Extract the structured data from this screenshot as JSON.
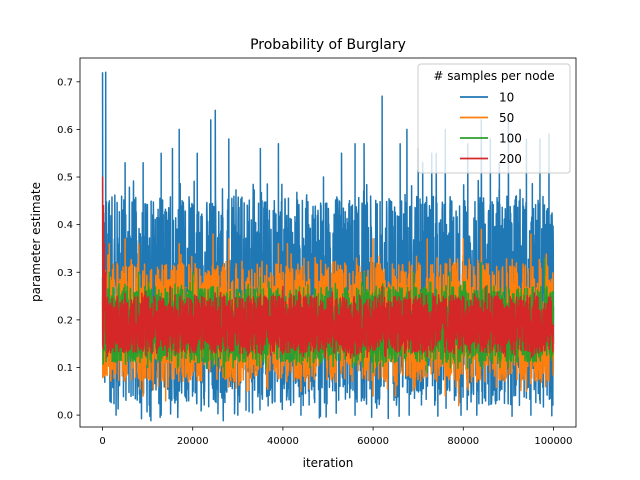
{
  "chart_data": {
    "type": "line",
    "title": "Probability of Burglary",
    "xlabel": "iteration",
    "ylabel": "parameter estimate",
    "xlim": [
      -5000,
      105000
    ],
    "ylim": [
      -0.025,
      0.75
    ],
    "xticks": [
      0,
      20000,
      40000,
      60000,
      80000,
      100000
    ],
    "xtick_labels": [
      "0",
      "20000",
      "40000",
      "60000",
      "80000",
      "100000"
    ],
    "yticks": [
      0.0,
      0.1,
      0.2,
      0.3,
      0.4,
      0.5,
      0.6,
      0.7
    ],
    "ytick_labels": [
      "0.0",
      "0.1",
      "0.2",
      "0.3",
      "0.4",
      "0.5",
      "0.6",
      "0.7"
    ],
    "x_range": [
      0,
      100000
    ],
    "legend": {
      "title": "# samples per node",
      "placement": "top-right"
    },
    "grid": false,
    "series": [
      {
        "name": "10",
        "color": "#1f77b4",
        "initial_value": 0.72,
        "typical_range": [
          0.02,
          0.46
        ],
        "spikes": [
          [
            700,
            0.72
          ],
          [
            1500,
            0.45
          ],
          [
            5000,
            0.53
          ],
          [
            9000,
            0.53
          ],
          [
            13000,
            0.55
          ],
          [
            15500,
            0.56
          ],
          [
            17000,
            0.6
          ],
          [
            21000,
            0.55
          ],
          [
            24000,
            0.62
          ],
          [
            25000,
            0.64
          ],
          [
            28000,
            0.58
          ],
          [
            35000,
            0.56
          ],
          [
            39000,
            0.57
          ],
          [
            49000,
            0.5
          ],
          [
            53000,
            0.55
          ],
          [
            56000,
            0.57
          ],
          [
            58000,
            0.57
          ],
          [
            62000,
            0.67
          ],
          [
            66000,
            0.57
          ],
          [
            67500,
            0.6
          ],
          [
            70000,
            0.56
          ],
          [
            71000,
            0.53
          ],
          [
            73000,
            0.55
          ],
          [
            74000,
            0.55
          ],
          [
            76000,
            0.6
          ],
          [
            81000,
            0.57
          ],
          [
            84000,
            0.62
          ],
          [
            86000,
            0.58
          ],
          [
            88000,
            0.53
          ],
          [
            90000,
            0.62
          ],
          [
            94000,
            0.58
          ],
          [
            97000,
            0.58
          ],
          [
            99000,
            0.59
          ]
        ],
        "low_spikes": [
          [
            3000,
            0.0
          ],
          [
            13000,
            0.0
          ],
          [
            30000,
            0.0
          ],
          [
            44000,
            0.0
          ],
          [
            56000,
            0.0
          ],
          [
            68000,
            0.0
          ],
          [
            83000,
            0.0
          ],
          [
            95000,
            0.0
          ]
        ]
      },
      {
        "name": "50",
        "color": "#ff7f0e",
        "initial_value": 0.25,
        "typical_range": [
          0.07,
          0.32
        ],
        "spikes": [
          [
            1500,
            0.36
          ],
          [
            5000,
            0.37
          ],
          [
            8000,
            0.36
          ],
          [
            17000,
            0.36
          ],
          [
            24500,
            0.38
          ],
          [
            28000,
            0.37
          ],
          [
            39000,
            0.36
          ],
          [
            41000,
            0.36
          ],
          [
            60000,
            0.37
          ],
          [
            72000,
            0.37
          ],
          [
            80000,
            0.37
          ],
          [
            84000,
            0.39
          ],
          [
            95000,
            0.38
          ]
        ],
        "low_spikes": [
          [
            9000,
            0.04
          ],
          [
            14000,
            0.03
          ],
          [
            32000,
            0.05
          ],
          [
            44000,
            0.05
          ],
          [
            60000,
            0.04
          ],
          [
            65000,
            0.04
          ],
          [
            76000,
            0.04
          ],
          [
            79000,
            0.02
          ],
          [
            94000,
            0.05
          ]
        ]
      },
      {
        "name": "100",
        "color": "#2ca02c",
        "initial_value": 0.29,
        "typical_range": [
          0.11,
          0.27
        ],
        "spikes": [
          [
            1500,
            0.3
          ],
          [
            8000,
            0.3
          ],
          [
            20000,
            0.3
          ],
          [
            35000,
            0.29
          ],
          [
            58000,
            0.3
          ],
          [
            69000,
            0.3
          ],
          [
            77000,
            0.3
          ],
          [
            84000,
            0.32
          ],
          [
            98000,
            0.33
          ]
        ],
        "low_spikes": [
          [
            10000,
            0.1
          ],
          [
            27000,
            0.08
          ],
          [
            46000,
            0.1
          ],
          [
            60000,
            0.09
          ],
          [
            72000,
            0.09
          ],
          [
            90000,
            0.1
          ]
        ]
      },
      {
        "name": "200",
        "color": "#d62728",
        "initial_value": 0.5,
        "typical_range": [
          0.13,
          0.25
        ],
        "spikes": [
          [
            20,
            0.5
          ],
          [
            200,
            0.44
          ],
          [
            400,
            0.36
          ],
          [
            700,
            0.3
          ],
          [
            15000,
            0.27
          ],
          [
            40000,
            0.27
          ],
          [
            62000,
            0.27
          ],
          [
            85000,
            0.27
          ]
        ],
        "low_spikes": [
          [
            12000,
            0.13
          ],
          [
            31000,
            0.13
          ],
          [
            55000,
            0.12
          ],
          [
            78000,
            0.13
          ],
          [
            96000,
            0.13
          ]
        ]
      }
    ]
  }
}
